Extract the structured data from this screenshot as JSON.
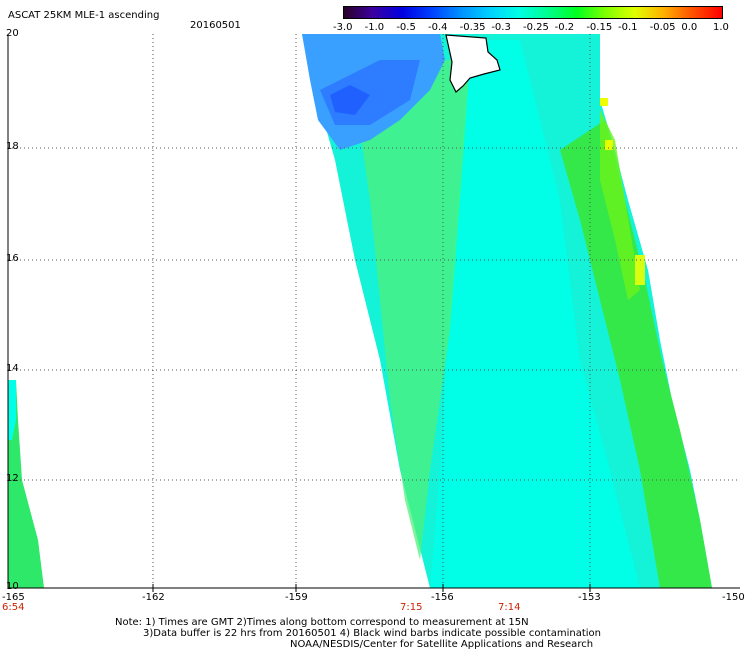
{
  "header": {
    "title": "ASCAT 25KM MLE-1 ascending",
    "date": "20160501"
  },
  "colorbar": {
    "labels": [
      "-3.0",
      "-1.0",
      "-0.5",
      "-0.4",
      "-0.35",
      "-0.3",
      "-0.25",
      "-0.2",
      "-0.15",
      "-0.1",
      "-0.05",
      "0.0",
      "1.0"
    ],
    "colors": [
      "#2a0028",
      "#3b00a0",
      "#0000e0",
      "#0040ff",
      "#0090ff",
      "#00d0ff",
      "#00ffe6",
      "#00ff90",
      "#00ff20",
      "#80ff00",
      "#e0ff00",
      "#ffb000",
      "#ff5000",
      "#ff0000"
    ]
  },
  "axes": {
    "lat_labels": [
      "20",
      "18",
      "16",
      "14",
      "12",
      "10"
    ],
    "lon_labels": [
      "-165",
      "-162",
      "-159",
      "-156",
      "-153",
      "-150"
    ]
  },
  "pass_times": {
    "left": "6:54",
    "center_left": "7:15",
    "center_right": "7:14"
  },
  "notes": {
    "line1": "Note: 1) Times are GMT 2)Times along bottom correspond to measurement at 15N",
    "line2": "3)Data buffer is 22 hrs from 20160501 4) Black wind barbs indicate possible contamination",
    "line3": "NOAA/NESDIS/Center for Satellite Applications and Research"
  }
}
